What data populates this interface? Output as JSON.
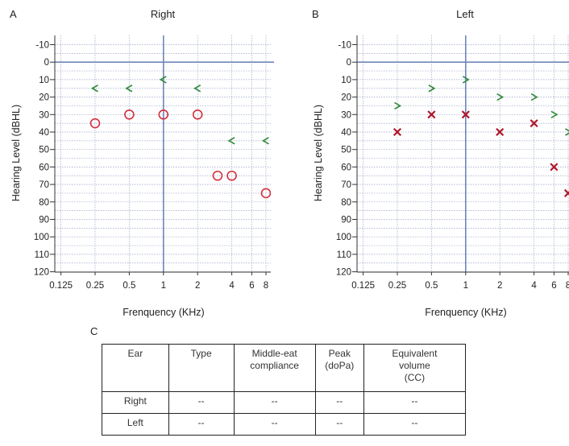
{
  "panel_a": {
    "letter": "A"
  },
  "panel_b": {
    "letter": "B"
  },
  "panel_c": {
    "letter": "C"
  },
  "chart_data": [
    {
      "type": "scatter",
      "title": "Right",
      "xlabel": "Frenquency (KHz)",
      "ylabel": "Hearing Level (dBHL)",
      "x_ticks": [
        0.125,
        0.25,
        0.5,
        1,
        2,
        4,
        6,
        8
      ],
      "x_tick_labels": [
        "0.125",
        "0.25",
        "0.5",
        "1",
        "2",
        "4",
        "6",
        "8"
      ],
      "y_ticks": [
        -10,
        0,
        10,
        20,
        30,
        40,
        50,
        60,
        70,
        80,
        90,
        100,
        110,
        120
      ],
      "y_tick_labels": [
        "-10",
        "0",
        "10",
        "20",
        "30",
        "40",
        "50",
        "60",
        "70",
        "80",
        "90",
        "100",
        "110",
        "120"
      ],
      "ylim": [
        -12,
        122
      ],
      "y_inverted": true,
      "x_scale": "log2",
      "grid": true,
      "series": [
        {
          "marker": "circle",
          "color": "#d12f3f",
          "x": [
            0.25,
            0.5,
            1,
            2,
            3,
            4,
            8
          ],
          "y": [
            35,
            30,
            30,
            30,
            65,
            65,
            75
          ]
        },
        {
          "marker": "angle-left",
          "color": "#2f8a3a",
          "x": [
            0.25,
            0.5,
            1,
            2,
            4,
            8
          ],
          "y": [
            15,
            15,
            10,
            15,
            45,
            45
          ]
        }
      ]
    },
    {
      "type": "scatter",
      "title": "Left",
      "xlabel": "Frenquency (KHz)",
      "ylabel": "Hearing Level (dBHL)",
      "x_ticks": [
        0.125,
        0.25,
        0.5,
        1,
        2,
        4,
        6,
        8
      ],
      "x_tick_labels": [
        "0.125",
        "0.25",
        "0.5",
        "1",
        "2",
        "4",
        "6",
        "8"
      ],
      "y_ticks": [
        -10,
        0,
        10,
        20,
        30,
        40,
        50,
        60,
        70,
        80,
        90,
        100,
        110,
        120
      ],
      "y_tick_labels": [
        "-10",
        "0",
        "10",
        "20",
        "30",
        "40",
        "50",
        "60",
        "70",
        "80",
        "90",
        "100",
        "110",
        "120"
      ],
      "ylim": [
        -12,
        122
      ],
      "y_inverted": true,
      "x_scale": "log2",
      "grid": true,
      "series": [
        {
          "marker": "cross",
          "color": "#b0182b",
          "x": [
            0.25,
            0.5,
            1,
            2,
            4,
            6,
            8
          ],
          "y": [
            40,
            30,
            30,
            40,
            35,
            60,
            75
          ]
        },
        {
          "marker": "angle-right",
          "color": "#2f8a3a",
          "x": [
            0.25,
            0.5,
            1,
            2,
            4,
            6,
            8
          ],
          "y": [
            25,
            15,
            10,
            20,
            20,
            30,
            40
          ]
        }
      ]
    }
  ],
  "table": {
    "headers": [
      "Ear",
      "Type",
      "Middle-eat\ncompliance",
      "Peak\n(doPa)",
      "Equivalent\nvolume\n(CC)"
    ],
    "rows": [
      [
        "Right",
        "--",
        "--",
        "--",
        "--"
      ],
      [
        "Left",
        "--",
        "--",
        "--",
        "--"
      ]
    ]
  }
}
